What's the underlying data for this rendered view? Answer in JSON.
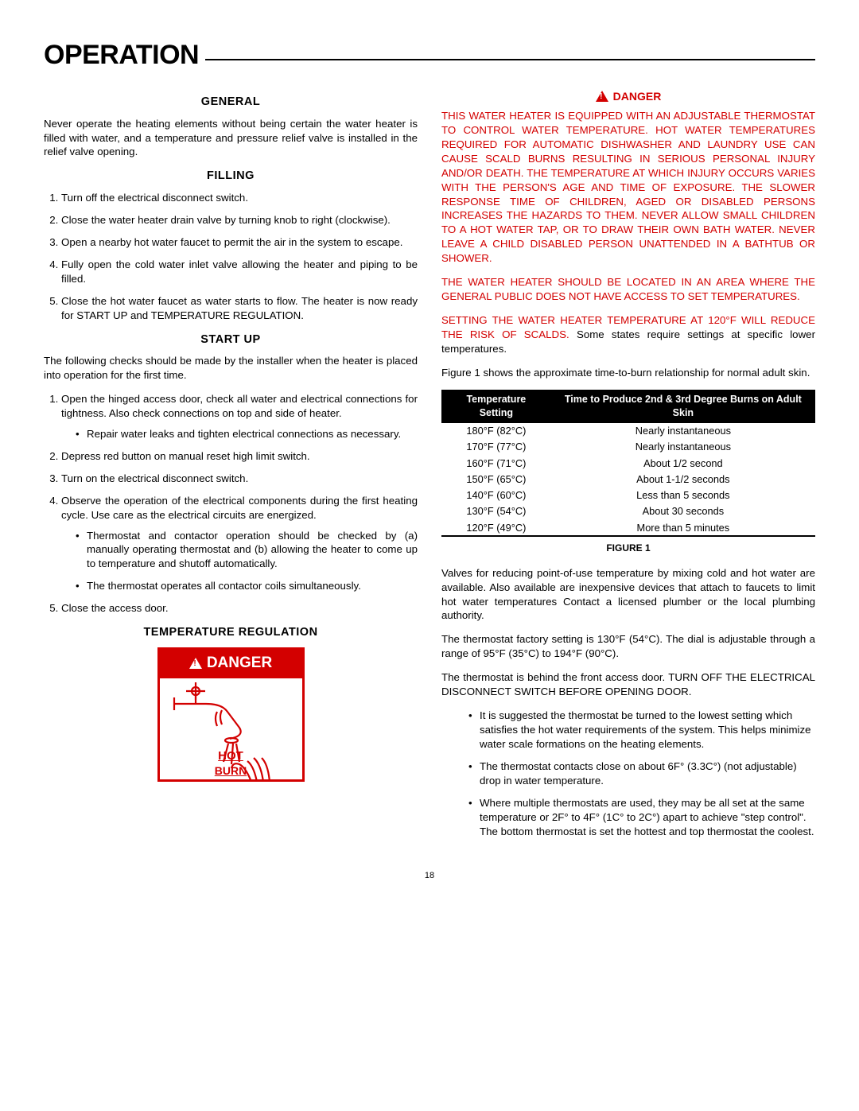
{
  "page_title": "OPERATION",
  "page_number": "18",
  "left": {
    "general_h": "GENERAL",
    "general_p": "Never operate the heating elements without being certain the water heater is filled with water, and a temperature and pressure relief valve is installed in the relief valve opening.",
    "filling_h": "FILLING",
    "fill_1": "Turn off the electrical disconnect switch.",
    "fill_2": "Close the water heater drain valve by turning knob to right (clockwise).",
    "fill_3": "Open a nearby hot water faucet to permit the air in the system to escape.",
    "fill_4": "Fully open the cold water inlet valve allowing the heater and piping to be filled.",
    "fill_5a": "Close the hot water faucet as water starts to flow. The heater is now ready for START UP and TEMPERATURE REGULATION.",
    "startup_h": "START UP",
    "startup_intro": "The following checks should be made by the installer when the heater is placed into operation for the first time.",
    "su_1": "Open the hinged access door, check all water and electrical connections for tightness. Also check connections on top and side of heater.",
    "su_1a": "Repair water leaks and tighten electrical connections as necessary.",
    "su_2": "Depress red button on manual reset high limit switch.",
    "su_3": "Turn on the electrical disconnect switch.",
    "su_4": "Observe the operation of the electrical components during the first heating cycle.  Use care as the electrical circuits are energized.",
    "su_4a": "Thermostat and contactor operation should be checked by (a) manually operating thermostat and (b) allowing the heater to come up to temperature and shutoff automatically.",
    "su_4b": "The thermostat operates all contactor coils simultaneously.",
    "su_5": "Close the access door.",
    "tempreg_h": "TEMPERATURE REGULATION",
    "label_head": "DANGER",
    "label_hot": "HOT",
    "label_burn": "BURN"
  },
  "right": {
    "danger_h": "DANGER",
    "danger_p1": "THIS WATER HEATER IS EQUIPPED WITH AN ADJUSTABLE THERMOSTAT TO CONTROL WATER TEMPERATURE.  HOT WATER TEMPERATURES REQUIRED FOR AUTOMATIC DISHWASHER AND LAUNDRY USE CAN CAUSE SCALD BURNS RESULTING IN SERIOUS PERSONAL INJURY AND/OR DEATH.  THE TEMPERATURE AT WHICH INJURY OCCURS VARIES WITH THE PERSON'S AGE AND TIME OF EXPOSURE.  THE SLOWER RESPONSE TIME OF CHILDREN, AGED OR DISABLED PERSONS INCREASES THE HAZARDS TO THEM.  NEVER ALLOW SMALL CHILDREN TO A HOT WATER TAP, OR TO DRAW THEIR OWN BATH WATER.  NEVER LEAVE A CHILD DISABLED PERSON UNATTENDED IN A BATHTUB OR SHOWER.",
    "danger_p2": "THE WATER HEATER SHOULD BE LOCATED IN AN AREA WHERE THE GENERAL PUBLIC DOES NOT HAVE ACCESS TO SET TEMPERATURES.",
    "danger_p3a": "SETTING THE WATER HEATER TEMPERATURE AT 120°F WILL REDUCE THE RISK OF SCALDS.",
    "danger_p3b": "  Some states require settings at specific lower temperatures.",
    "fig_intro": "Figure 1 shows the approximate time-to-burn relationship for normal adult skin.",
    "table": {
      "h1": "Temperature Setting",
      "h2": "Time to Produce 2nd & 3rd Degree Burns on Adult Skin",
      "rows": [
        [
          "180°F (82°C)",
          "Nearly instantaneous"
        ],
        [
          "170°F (77°C)",
          "Nearly instantaneous"
        ],
        [
          "160°F (71°C)",
          "About 1/2 second"
        ],
        [
          "150°F (65°C)",
          "About 1-1/2 seconds"
        ],
        [
          "140°F (60°C)",
          "Less than 5 seconds"
        ],
        [
          "130°F (54°C)",
          "About 30 seconds"
        ],
        [
          "120°F (49°C)",
          "More than 5 minutes"
        ]
      ]
    },
    "fig_caption": "FIGURE 1",
    "p_after1": "Valves for reducing point-of-use temperature by mixing cold and hot water are available.  Also available are inexpensive devices that attach to faucets to limit hot water temperatures  Contact a licensed plumber or the local plumbing authority.",
    "p_after2": "The thermostat factory setting is 130°F (54°C).  The dial is adjustable through a range of 95°F (35°C) to 194°F (90°C).",
    "p_after3": "The thermostat is behind the front access door. TURN OFF THE ELECTRICAL DISCONNECT SWITCH BEFORE OPENING DOOR.",
    "bul1": "It is suggested the thermostat be turned to the lowest setting which satisfies the hot water requirements of the system. This helps minimize water scale formations on the heating elements.",
    "bul2": "The thermostat contacts close on about 6F° (3.3C°) (not adjustable) drop in water temperature.",
    "bul3": "Where multiple thermostats are used, they may be all set at the same temperature or 2F°  to 4F° (1C° to 2C°) apart to achieve \"step control\". The bottom thermostat is set the hottest and top thermostat the coolest."
  }
}
